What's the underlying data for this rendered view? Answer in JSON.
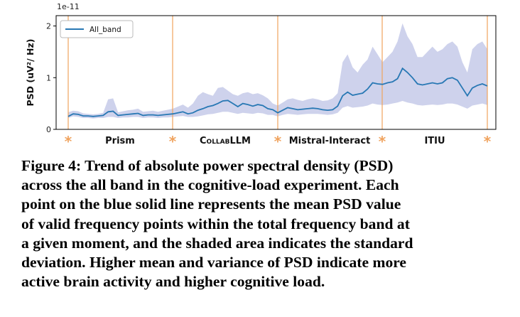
{
  "chart_data": {
    "type": "line",
    "ylabel": "PSD (uV²/ Hz)",
    "y_multiplier_label": "1e-11",
    "ylim": [
      0,
      2.2
    ],
    "yticks": [
      0,
      1,
      2
    ],
    "ytick_labels": [
      "0",
      "1",
      "2"
    ],
    "legend": {
      "placement": "top-left",
      "entries": [
        "All_band"
      ]
    },
    "series": [
      {
        "name": "All_band",
        "color": "#2878b4",
        "band_color": "#c5cae9",
        "mean": [
          0.25,
          0.3,
          0.29,
          0.26,
          0.26,
          0.25,
          0.26,
          0.27,
          0.34,
          0.35,
          0.27,
          0.28,
          0.29,
          0.3,
          0.31,
          0.27,
          0.28,
          0.28,
          0.27,
          0.28,
          0.29,
          0.3,
          0.32,
          0.34,
          0.3,
          0.32,
          0.37,
          0.4,
          0.44,
          0.46,
          0.5,
          0.55,
          0.56,
          0.5,
          0.44,
          0.5,
          0.48,
          0.45,
          0.48,
          0.46,
          0.4,
          0.38,
          0.32,
          0.37,
          0.42,
          0.4,
          0.38,
          0.39,
          0.4,
          0.41,
          0.4,
          0.38,
          0.37,
          0.38,
          0.45,
          0.65,
          0.72,
          0.66,
          0.68,
          0.7,
          0.78,
          0.9,
          0.88,
          0.87,
          0.9,
          0.92,
          0.98,
          1.18,
          1.1,
          1.0,
          0.88,
          0.86,
          0.88,
          0.9,
          0.88,
          0.9,
          0.98,
          1.0,
          0.95,
          0.8,
          0.65,
          0.8,
          0.85,
          0.88,
          0.84
        ],
        "upper": [
          0.33,
          0.36,
          0.35,
          0.31,
          0.3,
          0.29,
          0.3,
          0.32,
          0.58,
          0.6,
          0.33,
          0.35,
          0.37,
          0.38,
          0.4,
          0.34,
          0.35,
          0.36,
          0.34,
          0.36,
          0.38,
          0.4,
          0.44,
          0.48,
          0.42,
          0.5,
          0.65,
          0.72,
          0.68,
          0.65,
          0.8,
          0.82,
          0.75,
          0.68,
          0.65,
          0.7,
          0.72,
          0.68,
          0.7,
          0.66,
          0.6,
          0.5,
          0.46,
          0.52,
          0.58,
          0.6,
          0.57,
          0.55,
          0.58,
          0.6,
          0.58,
          0.55,
          0.56,
          0.6,
          0.7,
          1.3,
          1.45,
          1.2,
          1.1,
          1.25,
          1.35,
          1.6,
          1.45,
          1.3,
          1.4,
          1.5,
          1.7,
          2.05,
          1.8,
          1.65,
          1.4,
          1.4,
          1.5,
          1.6,
          1.5,
          1.55,
          1.65,
          1.7,
          1.6,
          1.3,
          1.1,
          1.55,
          1.65,
          1.7,
          1.55
        ],
        "lower": [
          0.22,
          0.25,
          0.24,
          0.22,
          0.22,
          0.21,
          0.22,
          0.22,
          0.24,
          0.24,
          0.22,
          0.23,
          0.23,
          0.24,
          0.24,
          0.22,
          0.23,
          0.23,
          0.22,
          0.23,
          0.23,
          0.24,
          0.25,
          0.26,
          0.24,
          0.24,
          0.25,
          0.27,
          0.29,
          0.3,
          0.32,
          0.34,
          0.34,
          0.32,
          0.3,
          0.32,
          0.31,
          0.3,
          0.32,
          0.31,
          0.28,
          0.28,
          0.25,
          0.28,
          0.3,
          0.29,
          0.28,
          0.29,
          0.3,
          0.3,
          0.3,
          0.29,
          0.28,
          0.29,
          0.32,
          0.42,
          0.45,
          0.42,
          0.43,
          0.44,
          0.46,
          0.5,
          0.48,
          0.47,
          0.48,
          0.5,
          0.52,
          0.55,
          0.52,
          0.5,
          0.47,
          0.46,
          0.47,
          0.48,
          0.47,
          0.48,
          0.5,
          0.5,
          0.48,
          0.44,
          0.4,
          0.46,
          0.48,
          0.5,
          0.47
        ]
      }
    ],
    "phase_markers": [
      "*",
      "*",
      "*",
      "*",
      "*"
    ],
    "phases": [
      "Prism",
      "CollabLLM",
      "Mistral-Interact",
      "ITIU"
    ],
    "phase_boundary_color": "#f0a35e"
  },
  "caption": {
    "lead": "Figure 4: Trend of absolute power spectral density (PSD)",
    "lines": [
      "across the all band in the cognitive-load experiment. Each",
      "point on the blue solid line represents the mean PSD value",
      "of valid frequency points within the total frequency band at",
      "a given moment, and the shaded area indicates the standard",
      "deviation. Higher mean and variance of PSD indicate more",
      "active brain activity and higher cognitive load."
    ]
  }
}
